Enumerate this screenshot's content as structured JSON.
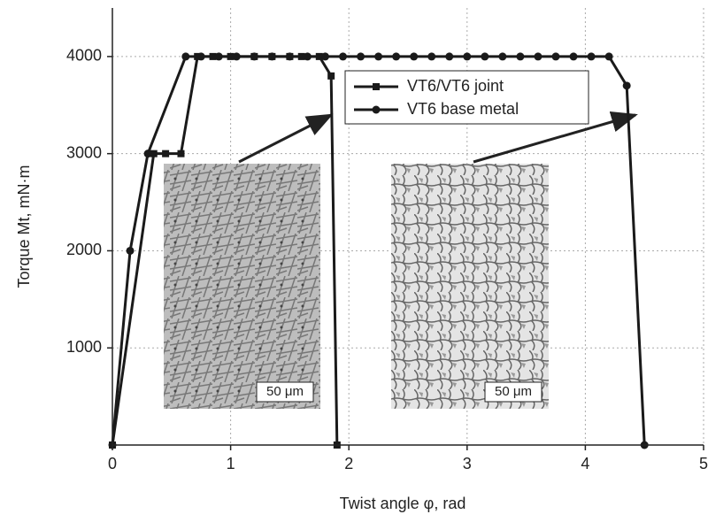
{
  "chart_data": {
    "type": "line",
    "x_label": "Twist angle  φ, rad",
    "y_label": "Torque Mt, mN·m",
    "xlim": [
      0,
      5
    ],
    "xticks": [
      0,
      1,
      2,
      3,
      4,
      5
    ],
    "ylim": [
      0,
      4500
    ],
    "yticks": [
      1000,
      2000,
      3000,
      4000
    ],
    "grid": true,
    "legend": "top-center",
    "series": [
      {
        "name": "VT6/VT6 joint",
        "color": "#1a1a1a",
        "marker": "square",
        "x": [
          0,
          0.35,
          0.45,
          0.58,
          0.72,
          0.85,
          1.0,
          1.2,
          1.35,
          1.5,
          1.6,
          1.75,
          1.85,
          1.9
        ],
        "values": [
          0,
          3000,
          3000,
          3000,
          4000,
          4000,
          4000,
          4000,
          4000,
          4000,
          4000,
          4000,
          3800,
          0
        ]
      },
      {
        "name": "VT6 base metal",
        "color": "#1a1a1a",
        "marker": "circle",
        "x": [
          0,
          0.15,
          0.3,
          0.62,
          0.75,
          0.9,
          1.05,
          1.2,
          1.35,
          1.5,
          1.65,
          1.8,
          1.95,
          2.1,
          2.25,
          2.4,
          2.55,
          2.7,
          2.85,
          3.0,
          3.15,
          3.3,
          3.45,
          3.6,
          3.75,
          3.9,
          4.05,
          4.2,
          4.35,
          4.5
        ],
        "values": [
          0,
          2000,
          3000,
          4000,
          4000,
          4000,
          4000,
          4000,
          4000,
          4000,
          4000,
          4000,
          4000,
          4000,
          4000,
          4000,
          4000,
          4000,
          4000,
          4000,
          4000,
          4000,
          4000,
          4000,
          4000,
          4000,
          4000,
          4000,
          3700,
          0
        ]
      }
    ],
    "insets": [
      {
        "scale_label": "50 μm"
      },
      {
        "scale_label": "50 μm"
      }
    ]
  }
}
